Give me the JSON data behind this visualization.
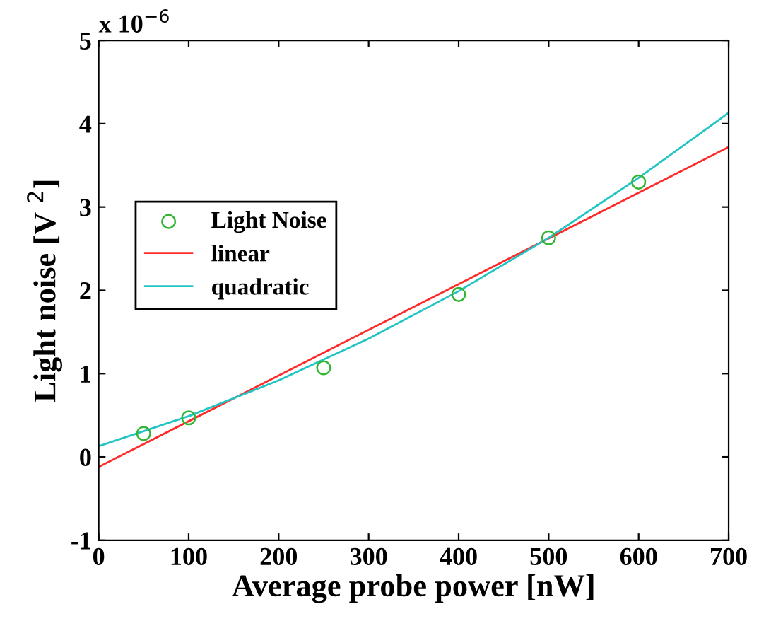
{
  "chart_data": {
    "type": "line",
    "xlabel": "Average probe power [nW]",
    "ylabel": "Light noise [V $^{2}$]",
    "annotations": [
      "x 10$^{−6}$"
    ],
    "xlim": [
      0,
      700
    ],
    "ylim": [
      -1,
      5
    ],
    "xticks": [
      0,
      100,
      200,
      300,
      400,
      500,
      600,
      700
    ],
    "yticks": [
      -1,
      0,
      1,
      2,
      3,
      4,
      5
    ],
    "grid": false,
    "legend": "left",
    "series": [
      {
        "name": "Light Noise",
        "type": "scatter",
        "marker": "circle",
        "color": "#33b533",
        "x": [
          50,
          100,
          250,
          400,
          500,
          600
        ],
        "values": [
          0.28,
          0.47,
          1.07,
          1.95,
          2.63,
          3.3
        ]
      },
      {
        "name": "linear",
        "color": "#ff2a2a",
        "x": [
          0,
          700
        ],
        "values": [
          -0.12,
          3.72
        ]
      },
      {
        "name": "quadratic",
        "color": "#22c4c4",
        "x": [
          0,
          100,
          200,
          300,
          400,
          500,
          600,
          700
        ],
        "values": [
          0.13,
          0.49,
          0.92,
          1.42,
          1.99,
          2.63,
          3.35,
          4.13
        ]
      }
    ]
  }
}
